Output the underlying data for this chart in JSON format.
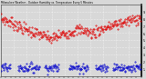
{
  "title": "Milwaukee Weather - Outdoor Humidity vs. Temperature Every 5 Minutes",
  "bg_color": "#d8d8d8",
  "plot_bg_color": "#d8d8d8",
  "grid_color": "#ffffff",
  "red_color": "#dd0000",
  "blue_color": "#0000cc",
  "ylim": [
    0,
    100
  ],
  "ytick_vals": [
    10,
    20,
    30,
    40,
    50,
    60,
    70,
    80,
    90
  ],
  "ytick_labels": [
    "1.",
    "2.",
    "3.",
    "4.",
    "5.",
    "6.",
    "7.",
    "8.",
    "9."
  ],
  "num_points": 288
}
